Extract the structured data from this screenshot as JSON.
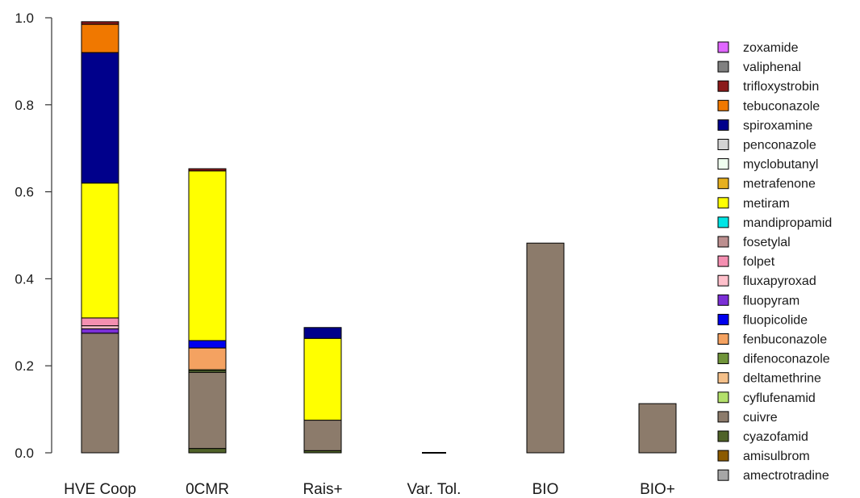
{
  "chart_data": {
    "type": "bar",
    "stacked": true,
    "categories": [
      "HVE Coop",
      "0CMR",
      "Rais+",
      "Var. Tol.",
      "BIO",
      "BIO+"
    ],
    "ylim": [
      0,
      1.0
    ],
    "yticks": [
      "0.0",
      "0.2",
      "0.4",
      "0.6",
      "0.8",
      "1.0"
    ],
    "legend_position": "right",
    "grid": false,
    "series": [
      {
        "name": "amectrotradine",
        "color": "#a6a6a6",
        "values": [
          0,
          0,
          0,
          0,
          0,
          0
        ]
      },
      {
        "name": "amisulbrom",
        "color": "#8b5a00",
        "values": [
          0,
          0,
          0,
          0,
          0,
          0
        ]
      },
      {
        "name": "cyazofamid",
        "color": "#4f6228",
        "values": [
          0,
          0.01,
          0.005,
          0,
          0,
          0
        ]
      },
      {
        "name": "cuivre",
        "color": "#8c7b6b",
        "values": [
          0.275,
          0.175,
          0.07,
          0,
          0.482,
          0.113
        ]
      },
      {
        "name": "cyflufenamid",
        "color": "#b3e06b",
        "values": [
          0,
          0.003,
          0,
          0,
          0,
          0
        ]
      },
      {
        "name": "deltamethrine",
        "color": "#f4c08a",
        "values": [
          0,
          0,
          0,
          0,
          0,
          0
        ]
      },
      {
        "name": "difenoconazole",
        "color": "#70943a",
        "values": [
          0,
          0.003,
          0,
          0,
          0,
          0
        ]
      },
      {
        "name": "fenbuconazole",
        "color": "#f4a261",
        "values": [
          0,
          0.05,
          0,
          0,
          0,
          0
        ]
      },
      {
        "name": "fluopicolide",
        "color": "#0000ee",
        "values": [
          0,
          0.017,
          0,
          0,
          0,
          0
        ]
      },
      {
        "name": "fluopyram",
        "color": "#7b2fd6",
        "values": [
          0.01,
          0,
          0,
          0,
          0,
          0
        ]
      },
      {
        "name": "fluxapyroxad",
        "color": "#ffc0cb",
        "values": [
          0.007,
          0,
          0,
          0,
          0,
          0
        ]
      },
      {
        "name": "folpet",
        "color": "#f48fb1",
        "values": [
          0.018,
          0,
          0,
          0,
          0,
          0
        ]
      },
      {
        "name": "fosetylal",
        "color": "#bc8f8f",
        "values": [
          0,
          0,
          0,
          0,
          0,
          0
        ]
      },
      {
        "name": "mandipropamid",
        "color": "#00e5e5",
        "values": [
          0,
          0,
          0,
          0,
          0,
          0
        ]
      },
      {
        "name": "metiram",
        "color": "#ffff00",
        "values": [
          0.31,
          0.39,
          0.188,
          0,
          0,
          0
        ]
      },
      {
        "name": "metrafenone",
        "color": "#e6b020",
        "values": [
          0,
          0,
          0,
          0,
          0,
          0
        ]
      },
      {
        "name": "myclobutanyl",
        "color": "#f0fff0",
        "values": [
          0,
          0,
          0,
          0,
          0,
          0
        ]
      },
      {
        "name": "penconazole",
        "color": "#d3d3d3",
        "values": [
          0,
          0,
          0,
          0,
          0,
          0
        ]
      },
      {
        "name": "spiroxamine",
        "color": "#00008b",
        "values": [
          0.3,
          0,
          0.025,
          0,
          0,
          0
        ]
      },
      {
        "name": "tebuconazole",
        "color": "#f07800",
        "values": [
          0.065,
          0,
          0,
          0,
          0,
          0
        ]
      },
      {
        "name": "trifloxystrobin",
        "color": "#8b1a1a",
        "values": [
          0.006,
          0.005,
          0,
          0,
          0,
          0
        ]
      },
      {
        "name": "valiphenal",
        "color": "#808080",
        "values": [
          0,
          0,
          0,
          0,
          0,
          0
        ]
      },
      {
        "name": "zoxamide",
        "color": "#e066ff",
        "values": [
          0,
          0,
          0,
          0,
          0,
          0
        ]
      }
    ]
  }
}
